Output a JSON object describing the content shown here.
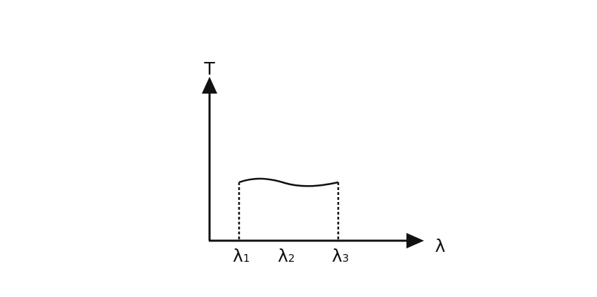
{
  "diagram": {
    "y_axis_label": "T",
    "x_axis_label": "λ",
    "ticks": [
      {
        "symbol": "λ",
        "subscript": "1"
      },
      {
        "symbol": "λ",
        "subscript": "2"
      },
      {
        "symbol": "λ",
        "subscript": "3"
      }
    ],
    "line_color": "#111111"
  }
}
